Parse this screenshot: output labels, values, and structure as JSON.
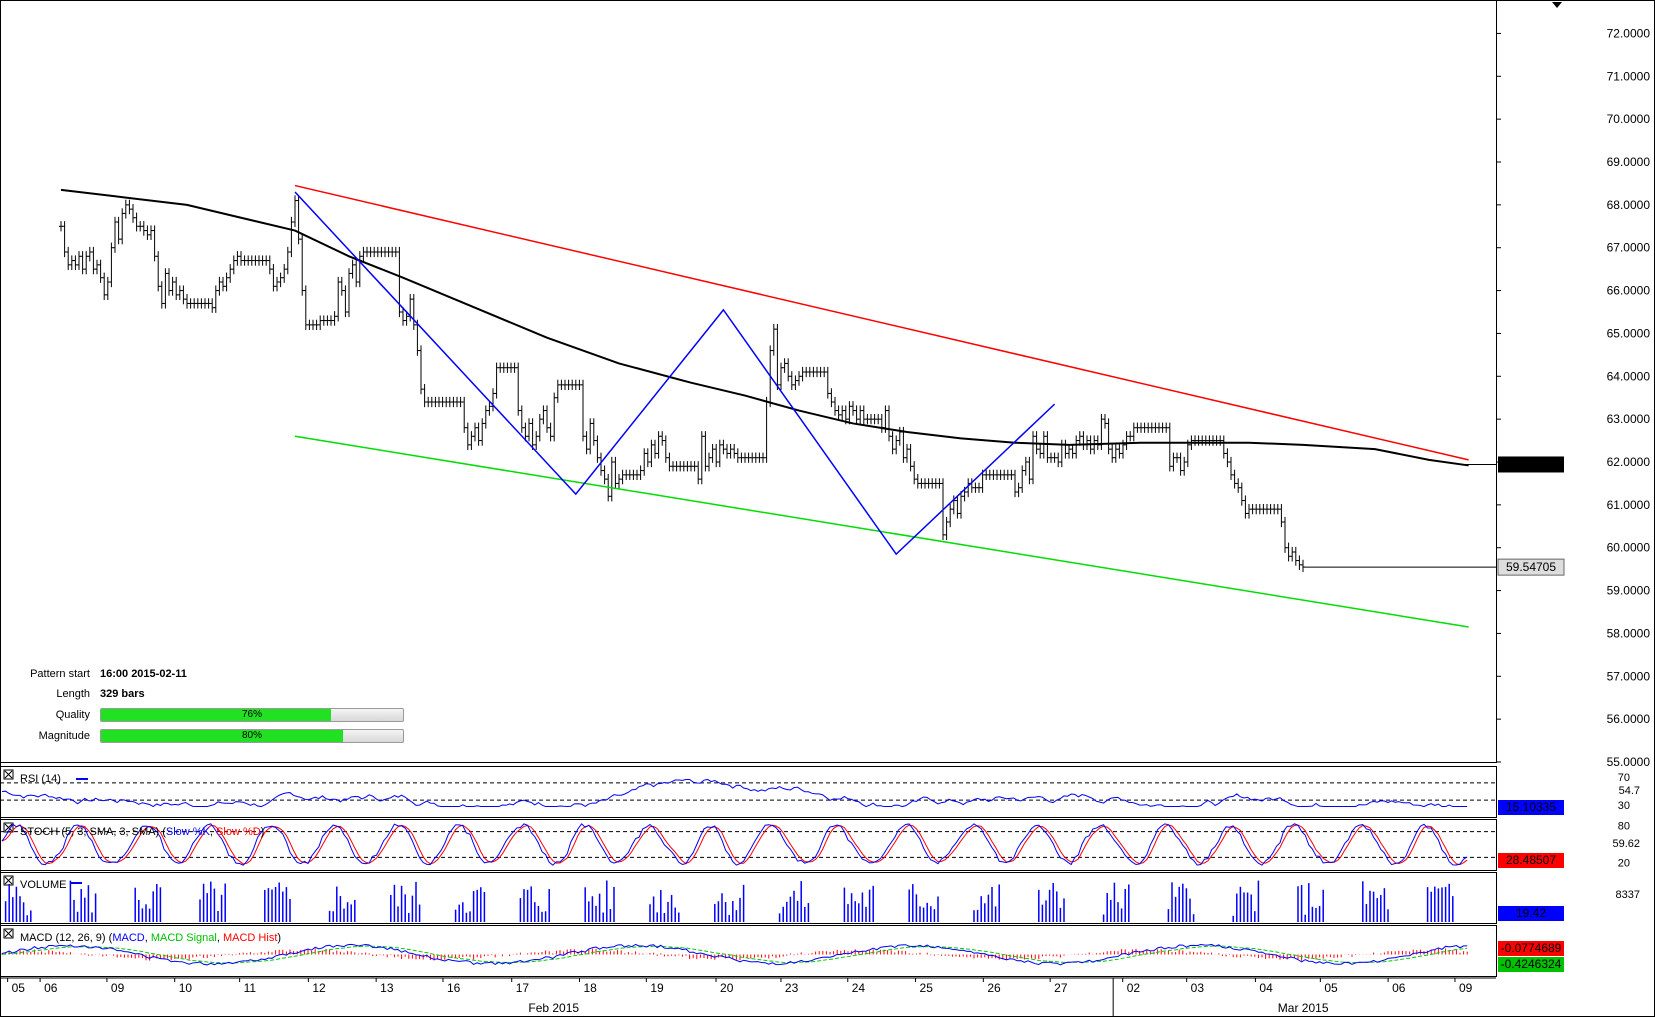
{
  "pattern_info": {
    "start_label": "Pattern start",
    "start_value": "16:00 2015-02-11",
    "length_label": "Length",
    "length_value": "329 bars",
    "quality_label": "Quality",
    "quality_pct": 76,
    "quality_text": "76%",
    "magnitude_label": "Magnitude",
    "magnitude_pct": 80,
    "magnitude_text": "80%"
  },
  "panels": {
    "rsi": {
      "label": "RSI (14)",
      "levels": [
        "70",
        "30"
      ],
      "scale": "54.7",
      "value": "15.10335"
    },
    "stoch": {
      "label": "STOCH (5, 3, SMA, 3, SMA)",
      "k_label": "Slow %K",
      "d_label": "Slow %D",
      "levels": [
        "80",
        "20"
      ],
      "scale": "59.62",
      "value": "28.48507"
    },
    "volume": {
      "label": "VOLUME",
      "scale": "8337",
      "value": "19.42"
    },
    "macd": {
      "label": "MACD (12, 26, 9)",
      "line_label": "MACD",
      "signal_label": "MACD Signal",
      "hist_label": "MACD Hist",
      "value1": "-0.0774689",
      "value2": "-0.4246324"
    }
  },
  "colors": {
    "resistance": "#ff0000",
    "support": "#00dd00",
    "zigzag": "#0000ff",
    "ma": "#000000",
    "blue_tag": "#0000ff",
    "red_tag": "#ff0000",
    "green_tag": "#00c000"
  },
  "chart_data": {
    "type": "line",
    "series_kind": "price bars (OHLC) with moving average and channel pattern",
    "y_ticks": [
      "72.0000",
      "71.0000",
      "70.0000",
      "69.0000",
      "68.0000",
      "67.0000",
      "66.0000",
      "65.0000",
      "64.0000",
      "63.0000",
      "62.0000",
      "61.0000",
      "60.0000",
      "59.0000",
      "58.0000",
      "57.0000",
      "56.0000",
      "55.0000"
    ],
    "ylim": [
      55.0,
      72.5
    ],
    "x_day_labels": [
      "05",
      "06",
      "09",
      "10",
      "11",
      "12",
      "13",
      "16",
      "17",
      "18",
      "19",
      "20",
      "23",
      "24",
      "25",
      "26",
      "27",
      "02",
      "03",
      "04",
      "05",
      "06",
      "09"
    ],
    "x_month_labels": [
      "Feb 2015",
      "Mar 2015"
    ],
    "last_price_tag": "59.54705",
    "resistance_tag": "61.94214",
    "resistance_line": {
      "start": [
        0,
        68.45
      ],
      "end": [
        326,
        62.05
      ]
    },
    "support_line": {
      "start": [
        0,
        62.6
      ],
      "end": [
        326,
        58.15
      ]
    },
    "zigzag": [
      [
        0,
        68.3
      ],
      [
        78,
        61.25
      ],
      [
        119,
        65.55
      ],
      [
        167,
        59.85
      ],
      [
        211,
        63.35
      ]
    ],
    "moving_average": [
      [
        -65,
        68.35
      ],
      [
        -50,
        68.2
      ],
      [
        -30,
        68.0
      ],
      [
        -10,
        67.6
      ],
      [
        0,
        67.4
      ],
      [
        15,
        66.8
      ],
      [
        30,
        66.3
      ],
      [
        50,
        65.6
      ],
      [
        70,
        64.9
      ],
      [
        90,
        64.3
      ],
      [
        110,
        63.85
      ],
      [
        125,
        63.55
      ],
      [
        140,
        63.2
      ],
      [
        155,
        62.9
      ],
      [
        170,
        62.7
      ],
      [
        185,
        62.55
      ],
      [
        200,
        62.45
      ],
      [
        215,
        62.4
      ],
      [
        235,
        62.45
      ],
      [
        250,
        62.45
      ],
      [
        265,
        62.45
      ],
      [
        280,
        62.4
      ],
      [
        300,
        62.3
      ],
      [
        315,
        62.05
      ],
      [
        326,
        61.92
      ]
    ],
    "price_bars": {
      "bar_start": -65,
      "values": [
        67.5,
        66.9,
        66.6,
        66.7,
        66.6,
        66.8,
        66.5,
        66.8,
        66.9,
        66.5,
        66.6,
        66.3,
        65.9,
        66.2,
        67.0,
        67.6,
        67.2,
        67.8,
        68.0,
        67.9,
        67.7,
        67.5,
        67.5,
        67.4,
        67.3,
        67.4,
        66.8,
        66.1,
        65.7,
        66.4,
        66.0,
        66.2,
        65.9,
        66.0,
        65.8,
        65.7,
        65.7,
        65.7,
        65.7,
        65.7,
        65.7,
        65.7,
        65.6,
        66.0,
        66.2,
        66.1,
        66.3,
        66.5,
        66.7,
        66.8,
        66.7,
        66.7,
        66.7,
        66.7,
        66.7,
        66.7,
        66.7,
        66.7,
        66.5,
        66.1,
        66.2,
        66.3,
        66.5,
        66.9,
        67.6,
        68.1,
        67.2,
        66.0,
        65.2,
        65.2,
        65.2,
        65.2,
        65.3,
        65.3,
        65.3,
        65.3,
        65.4,
        66.2,
        66.0,
        65.5,
        66.4,
        66.6,
        66.2,
        66.8,
        66.9,
        66.9,
        66.9,
        66.9,
        66.9,
        66.9,
        66.9,
        66.9,
        66.9,
        66.9,
        65.5,
        65.3,
        65.4,
        65.8,
        65.2,
        64.6,
        63.7,
        63.4,
        63.4,
        63.4,
        63.4,
        63.4,
        63.4,
        63.4,
        63.4,
        63.4,
        63.4,
        63.4,
        62.8,
        62.4,
        62.6,
        62.8,
        62.5,
        62.9,
        63.2,
        63.3,
        63.6,
        64.2,
        64.2,
        64.2,
        64.2,
        64.2,
        64.2,
        63.2,
        62.8,
        62.6,
        62.9,
        62.4,
        62.6,
        63.0,
        63.2,
        62.8,
        62.6,
        63.5,
        63.8,
        63.8,
        63.8,
        63.8,
        63.8,
        63.8,
        63.8,
        62.6,
        62.3,
        62.9,
        62.5,
        62.1,
        61.8,
        61.6,
        61.2,
        62.0,
        61.5,
        61.6,
        61.7,
        61.7,
        61.7,
        61.7,
        61.7,
        61.8,
        62.2,
        62.0,
        62.4,
        62.2,
        62.6,
        62.5,
        62.1,
        61.9,
        61.9,
        61.9,
        61.9,
        61.9,
        61.9,
        61.9,
        61.9,
        61.6,
        62.6,
        61.9,
        62.1,
        62.3,
        62.0,
        62.4,
        62.3,
        62.2,
        62.3,
        62.2,
        62.1,
        62.1,
        62.1,
        62.1,
        62.1,
        62.1,
        62.1,
        62.1,
        63.4,
        64.6,
        65.1,
        63.8,
        64.2,
        64.3,
        64.0,
        63.8,
        63.9,
        64.0,
        64.1,
        64.1,
        64.1,
        64.1,
        64.1,
        64.1,
        64.1,
        63.6,
        63.4,
        63.2,
        63.1,
        63.2,
        63.0,
        63.3,
        63.2,
        63.0,
        63.2,
        63.0,
        63.0,
        63.0,
        63.0,
        63.0,
        62.8,
        63.2,
        62.6,
        62.3,
        62.5,
        62.7,
        62.1,
        62.3,
        61.9,
        61.6,
        61.5,
        61.5,
        61.5,
        61.5,
        61.5,
        61.5,
        61.5,
        60.3,
        60.6,
        60.9,
        61.1,
        60.8,
        61.2,
        61.3,
        61.5,
        61.4,
        61.4,
        61.4,
        61.7,
        61.7,
        61.7,
        61.7,
        61.7,
        61.7,
        61.7,
        61.7,
        61.7,
        61.3,
        61.4,
        61.8,
        62.0,
        61.6,
        62.6,
        62.3,
        62.2,
        62.6,
        62.1,
        62.1,
        62.1,
        62.0,
        62.4,
        62.2,
        62.3,
        62.2,
        62.5,
        62.6,
        62.4,
        62.5,
        62.3,
        62.5,
        62.4,
        63.0,
        62.9,
        62.3,
        62.1,
        62.3,
        62.2,
        62.4,
        62.6,
        62.6,
        62.8,
        62.8,
        62.8,
        62.8,
        62.8,
        62.8,
        62.8,
        62.8,
        62.8,
        62.8,
        61.9,
        62.1,
        62.1,
        61.8,
        62.0,
        62.4,
        62.5,
        62.5,
        62.5,
        62.5,
        62.5,
        62.5,
        62.5,
        62.5,
        62.5,
        62.2,
        62.0,
        61.7,
        61.5,
        61.4,
        61.1,
        60.8,
        60.9,
        60.9,
        60.9,
        60.9,
        60.9,
        60.9,
        60.9,
        60.9,
        60.9,
        60.6,
        60.0,
        59.8,
        59.9,
        59.7,
        59.6,
        59.55
      ]
    }
  }
}
